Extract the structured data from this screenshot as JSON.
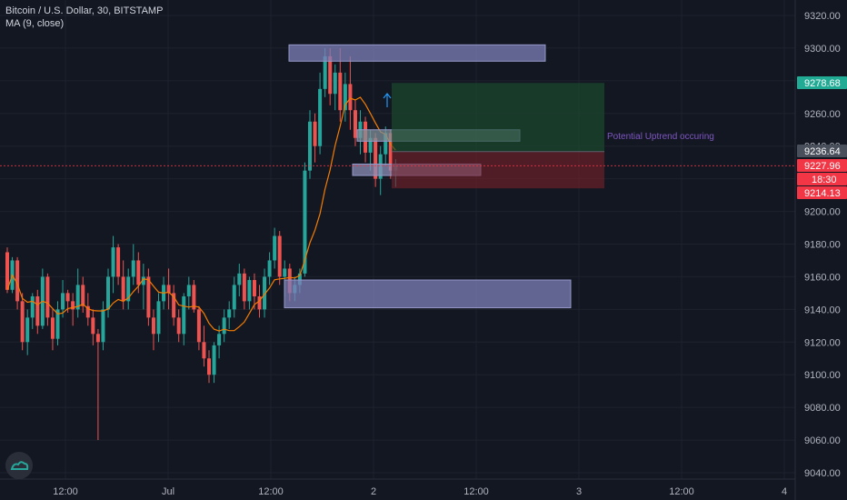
{
  "header": {
    "symbol_line": "Bitcoin / U.S. Dollar, 30, BITSTAMP",
    "indicator_line": "MA (9, close)"
  },
  "chart_data": {
    "type": "candlestick",
    "title": "Bitcoin / U.S. Dollar, 30, BITSTAMP",
    "ylim": [
      9035,
      9325
    ],
    "y_ticks": [
      9040,
      9060,
      9080,
      9100,
      9120,
      9140,
      9160,
      9180,
      9200,
      9220,
      9240,
      9260,
      9280,
      9300,
      9320
    ],
    "y_tick_labels": [
      "9040.00",
      "9060.00",
      "9080.00",
      "9100.00",
      "9120.00",
      "9140.00",
      "9160.00",
      "9180.00",
      "9200.00",
      "9220.00",
      "9240.00",
      "9260.00",
      "9280.00",
      "9300.00",
      "9320.00"
    ],
    "x_tick_labels": [
      "12:00",
      "Jul",
      "12:00",
      "2",
      "12:00",
      "3",
      "12:00",
      "4"
    ],
    "bar_start_index": 0,
    "candles_ohlc": [
      [
        9175,
        9178,
        9150,
        9152
      ],
      [
        9152,
        9172,
        9150,
        9170
      ],
      [
        9170,
        9172,
        9140,
        9145
      ],
      [
        9145,
        9150,
        9115,
        9120
      ],
      [
        9120,
        9140,
        9112,
        9135
      ],
      [
        9135,
        9150,
        9128,
        9148
      ],
      [
        9148,
        9152,
        9125,
        9130
      ],
      [
        9130,
        9165,
        9128,
        9160
      ],
      [
        9160,
        9162,
        9130,
        9135
      ],
      [
        9135,
        9140,
        9115,
        9122
      ],
      [
        9122,
        9145,
        9118,
        9140
      ],
      [
        9140,
        9158,
        9135,
        9150
      ],
      [
        9150,
        9152,
        9138,
        9145
      ],
      [
        9145,
        9150,
        9130,
        9140
      ],
      [
        9140,
        9165,
        9135,
        9155
      ],
      [
        9155,
        9160,
        9138,
        9142
      ],
      [
        9142,
        9150,
        9130,
        9135
      ],
      [
        9135,
        9140,
        9118,
        9125
      ],
      [
        9125,
        9128,
        9060,
        9120
      ],
      [
        9120,
        9145,
        9115,
        9140
      ],
      [
        9140,
        9165,
        9135,
        9160
      ],
      [
        9160,
        9185,
        9150,
        9178
      ],
      [
        9178,
        9180,
        9155,
        9160
      ],
      [
        9160,
        9170,
        9140,
        9145
      ],
      [
        9145,
        9165,
        9140,
        9160
      ],
      [
        9160,
        9180,
        9155,
        9170
      ],
      [
        9170,
        9175,
        9150,
        9155
      ],
      [
        9155,
        9168,
        9140,
        9160
      ],
      [
        9160,
        9165,
        9130,
        9135
      ],
      [
        9135,
        9140,
        9115,
        9125
      ],
      [
        9125,
        9150,
        9120,
        9145
      ],
      [
        9145,
        9160,
        9140,
        9155
      ],
      [
        9155,
        9165,
        9140,
        9150
      ],
      [
        9150,
        9155,
        9130,
        9135
      ],
      [
        9135,
        9140,
        9120,
        9125
      ],
      [
        9125,
        9150,
        9118,
        9148
      ],
      [
        9148,
        9160,
        9140,
        9155
      ],
      [
        9155,
        9158,
        9138,
        9140
      ],
      [
        9140,
        9142,
        9115,
        9120
      ],
      [
        9120,
        9130,
        9105,
        9110
      ],
      [
        9110,
        9115,
        9095,
        9100
      ],
      [
        9100,
        9120,
        9095,
        9118
      ],
      [
        9118,
        9130,
        9110,
        9125
      ],
      [
        9125,
        9140,
        9120,
        9135
      ],
      [
        9135,
        9145,
        9128,
        9140
      ],
      [
        9140,
        9160,
        9135,
        9155
      ],
      [
        9155,
        9168,
        9148,
        9162
      ],
      [
        9162,
        9165,
        9140,
        9145
      ],
      [
        9145,
        9160,
        9140,
        9158
      ],
      [
        9158,
        9162,
        9140,
        9148
      ],
      [
        9148,
        9155,
        9135,
        9140
      ],
      [
        9140,
        9165,
        9135,
        9160
      ],
      [
        9160,
        9175,
        9155,
        9170
      ],
      [
        9170,
        9190,
        9165,
        9185
      ],
      [
        9185,
        9188,
        9155,
        9160
      ],
      [
        9160,
        9170,
        9148,
        9165
      ],
      [
        9165,
        9168,
        9145,
        9150
      ],
      [
        9150,
        9160,
        9145,
        9155
      ],
      [
        9155,
        9165,
        9150,
        9162
      ],
      [
        9162,
        9230,
        9160,
        9225
      ],
      [
        9225,
        9262,
        9220,
        9255
      ],
      [
        9255,
        9260,
        9230,
        9240
      ],
      [
        9240,
        9285,
        9235,
        9275
      ],
      [
        9275,
        9300,
        9270,
        9295
      ],
      [
        9295,
        9300,
        9265,
        9272
      ],
      [
        9272,
        9290,
        9262,
        9285
      ],
      [
        9285,
        9300,
        9255,
        9262
      ],
      [
        9262,
        9285,
        9255,
        9278
      ],
      [
        9278,
        9295,
        9250,
        9262
      ],
      [
        9262,
        9268,
        9240,
        9245
      ],
      [
        9245,
        9262,
        9235,
        9255
      ],
      [
        9255,
        9258,
        9230,
        9236
      ],
      [
        9236,
        9250,
        9225,
        9245
      ],
      [
        9245,
        9248,
        9215,
        9220
      ],
      [
        9220,
        9240,
        9210,
        9235
      ],
      [
        9235,
        9252,
        9228,
        9248
      ],
      [
        9248,
        9250,
        9220,
        9225
      ],
      [
        9225,
        9232,
        9215,
        9228
      ]
    ],
    "moving_average": {
      "name": "MA (9, close)",
      "color": "#f57c00"
    },
    "zones": [
      {
        "label": "resistance-zone",
        "y_top": 9302,
        "y_bottom": 9292,
        "color": "#7e7fb8"
      },
      {
        "label": "mid-zone-1",
        "y_top": 9250,
        "y_bottom": 9243,
        "color": "#7e8f9a"
      },
      {
        "label": "mid-zone-2",
        "y_top": 9229,
        "y_bottom": 9222,
        "color": "#8c8fb5"
      },
      {
        "label": "support-zone",
        "y_top": 9158,
        "y_bottom": 9141,
        "color": "#7e7fb8"
      }
    ],
    "position": {
      "target": 9278.68,
      "entry": 9236.64,
      "stop": 9214.13
    },
    "annotation": "Potential Uptrend occuring",
    "price_tags": [
      {
        "value": "9278.68",
        "bg": "#22ab94",
        "fg": "#ffffff"
      },
      {
        "value": "9236.64",
        "bg": "#4a4f5c",
        "fg": "#ffffff"
      },
      {
        "value": "9227.96",
        "bg": "#f23645",
        "fg": "#ffffff"
      },
      {
        "value": "18:30",
        "bg": "#f23645",
        "fg": "#ffffff"
      },
      {
        "value": "9214.13",
        "bg": "#f23645",
        "fg": "#ffffff"
      }
    ],
    "colors": {
      "up": "#26a69a",
      "down": "#ef5350",
      "background": "#131722",
      "grid": "#1e222d"
    }
  }
}
